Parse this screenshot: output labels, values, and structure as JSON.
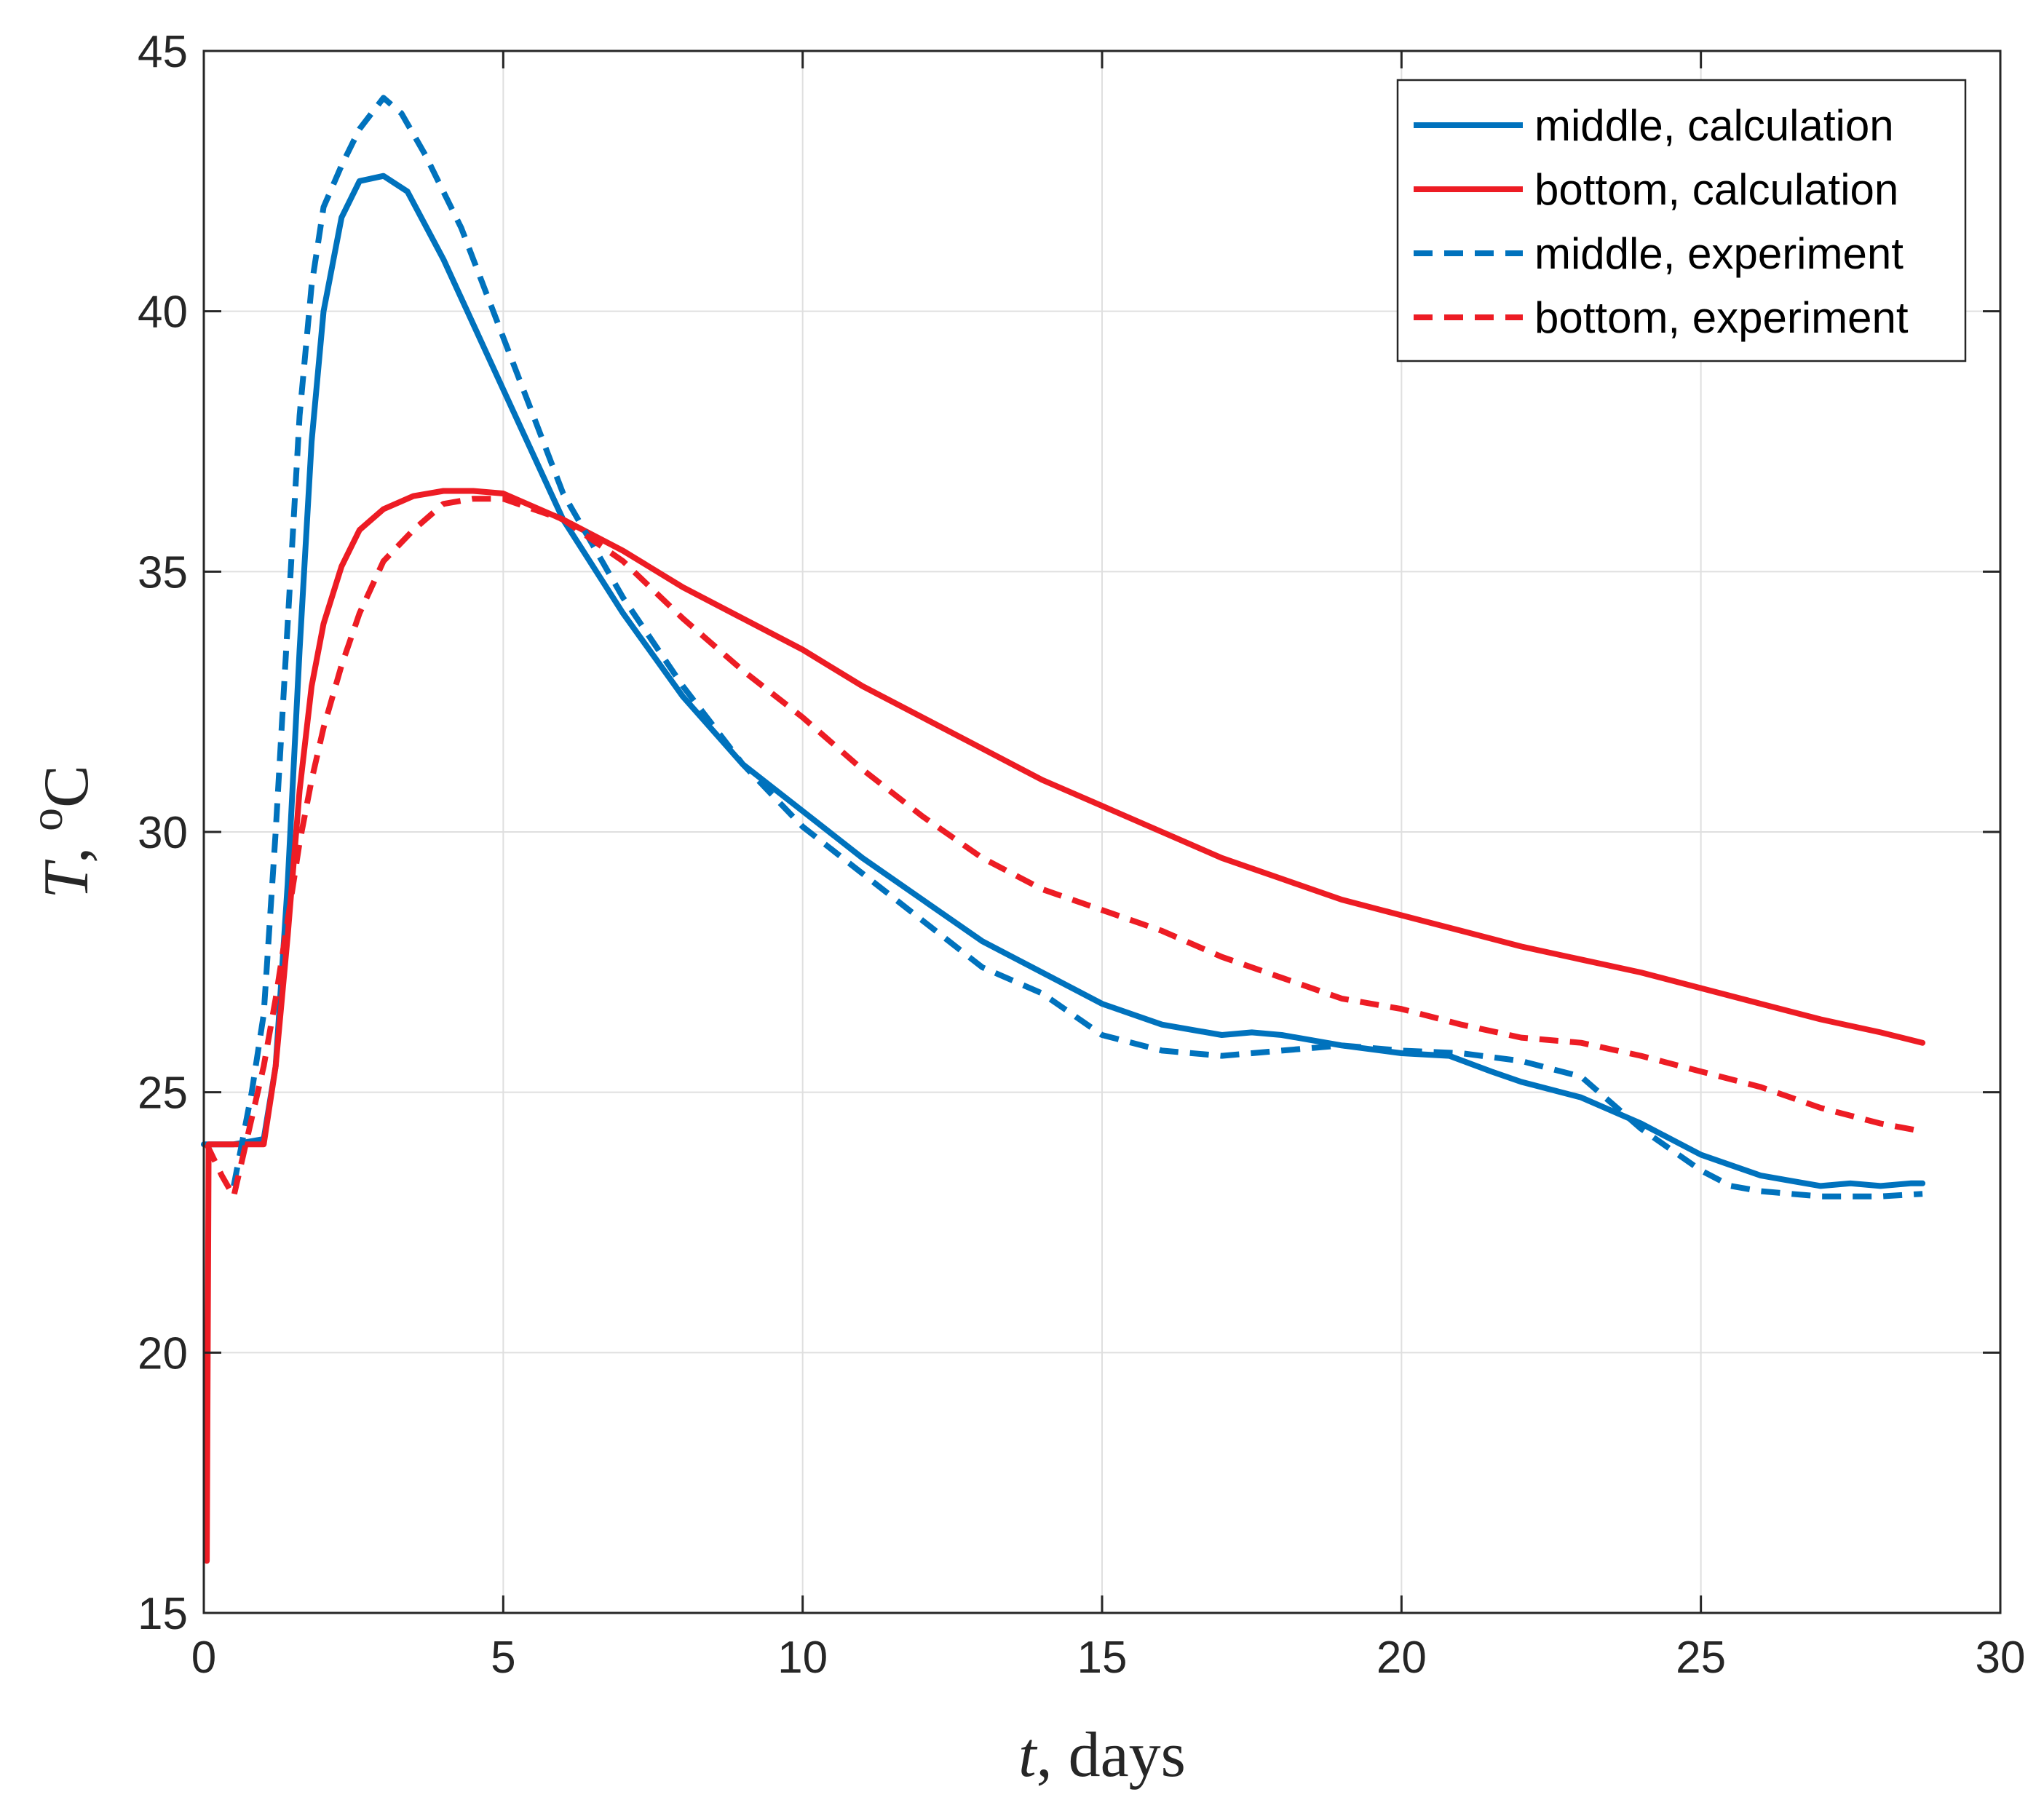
{
  "chart_data": {
    "type": "line",
    "title": "",
    "xlabel": {
      "var": "t",
      "rest": ", days"
    },
    "ylabel": {
      "var": "T",
      "rest": ", ",
      "sup": "o",
      "unit": "C"
    },
    "xlim": [
      0,
      30
    ],
    "ylim": [
      15,
      45
    ],
    "xticks": [
      0,
      5,
      10,
      15,
      20,
      25,
      30
    ],
    "yticks": [
      15,
      20,
      25,
      30,
      35,
      40,
      45
    ],
    "grid": true,
    "legend_position": "top-right",
    "colors": {
      "blue": "#0072BD",
      "red": "#ED1C24"
    },
    "series": [
      {
        "name": "middle, calculation",
        "style": "solid",
        "color": "#0072BD",
        "x": [
          0,
          0.5,
          1.0,
          1.2,
          1.4,
          1.6,
          1.8,
          2.0,
          2.3,
          2.6,
          3.0,
          3.4,
          4.0,
          5.0,
          6.0,
          7.0,
          8.0,
          9.0,
          10.0,
          11.0,
          12.0,
          13.0,
          14.0,
          14.5,
          15.0,
          16.0,
          17.0,
          17.5,
          18.0,
          19.0,
          20.0,
          20.8,
          21.5,
          22.0,
          23.0,
          24.0,
          24.5,
          25.0,
          25.5,
          26.0,
          26.5,
          27.0,
          27.5,
          28.0,
          28.5,
          28.7
        ],
        "y": [
          24.0,
          24.0,
          24.1,
          25.5,
          29.0,
          33.5,
          37.5,
          40.0,
          41.8,
          42.5,
          42.6,
          42.3,
          41.0,
          38.5,
          36.0,
          34.2,
          32.6,
          31.3,
          30.4,
          29.5,
          28.7,
          27.9,
          27.3,
          27.0,
          26.7,
          26.3,
          26.1,
          26.15,
          26.1,
          25.9,
          25.75,
          25.7,
          25.4,
          25.2,
          24.9,
          24.4,
          24.1,
          23.8,
          23.6,
          23.4,
          23.3,
          23.2,
          23.25,
          23.2,
          23.25,
          23.25
        ]
      },
      {
        "name": "bottom, calculation",
        "style": "solid",
        "color": "#ED1C24",
        "x": [
          0.05,
          0.08,
          0.1,
          0.5,
          1.0,
          1.2,
          1.4,
          1.6,
          1.8,
          2.0,
          2.3,
          2.6,
          3.0,
          3.5,
          4.0,
          4.5,
          5.0,
          6.0,
          7.0,
          8.0,
          9.0,
          10.0,
          11.0,
          12.0,
          13.0,
          14.0,
          15.0,
          16.0,
          17.0,
          18.0,
          19.0,
          20.0,
          21.0,
          22.0,
          23.0,
          24.0,
          25.0,
          26.0,
          27.0,
          28.0,
          28.7
        ],
        "y": [
          16.0,
          24.0,
          24.0,
          24.0,
          24.0,
          25.5,
          28.0,
          30.8,
          32.8,
          34.0,
          35.1,
          35.8,
          36.2,
          36.45,
          36.55,
          36.55,
          36.5,
          36.0,
          35.4,
          34.7,
          34.1,
          33.5,
          32.8,
          32.2,
          31.6,
          31.0,
          30.5,
          30.0,
          29.5,
          29.1,
          28.7,
          28.4,
          28.1,
          27.8,
          27.55,
          27.3,
          27.0,
          26.7,
          26.4,
          26.15,
          25.95
        ]
      },
      {
        "name": "middle, experiment",
        "style": "dashed",
        "color": "#0072BD",
        "x": [
          0.5,
          0.8,
          1.0,
          1.2,
          1.4,
          1.6,
          1.8,
          2.0,
          2.3,
          2.6,
          3.0,
          3.3,
          3.7,
          4.3,
          5.0,
          5.5,
          6.0,
          7.0,
          8.0,
          9.0,
          10.0,
          11.0,
          12.0,
          13.0,
          14.0,
          14.5,
          15.0,
          16.0,
          17.0,
          18.0,
          19.0,
          20.0,
          21.0,
          22.0,
          23.0,
          24.0,
          25.0,
          25.5,
          26.0,
          26.5,
          27.0,
          28.0,
          28.7
        ],
        "y": [
          23.2,
          25.0,
          26.5,
          30.0,
          34.0,
          38.0,
          40.5,
          42.0,
          42.8,
          43.5,
          44.1,
          43.8,
          43.0,
          41.6,
          39.5,
          38.0,
          36.5,
          34.5,
          32.8,
          31.3,
          30.1,
          29.2,
          28.3,
          27.4,
          26.9,
          26.5,
          26.1,
          25.8,
          25.7,
          25.8,
          25.9,
          25.8,
          25.75,
          25.6,
          25.3,
          24.3,
          23.5,
          23.2,
          23.1,
          23.05,
          23.0,
          23.0,
          23.05
        ]
      },
      {
        "name": "bottom, experiment",
        "style": "dashed",
        "color": "#ED1C24",
        "x": [
          0.05,
          0.3,
          0.5,
          0.8,
          1.0,
          1.2,
          1.4,
          1.6,
          1.8,
          2.0,
          2.3,
          2.6,
          3.0,
          3.5,
          4.0,
          4.5,
          5.0,
          6.0,
          7.0,
          8.0,
          9.0,
          10.0,
          11.0,
          12.0,
          13.0,
          14.0,
          15.0,
          16.0,
          17.0,
          18.0,
          19.0,
          20.0,
          21.0,
          22.0,
          23.0,
          24.0,
          25.0,
          26.0,
          27.0,
          28.0,
          28.7
        ],
        "y": [
          24.0,
          23.4,
          23.0,
          24.5,
          25.5,
          26.8,
          28.3,
          29.8,
          31.0,
          32.0,
          33.2,
          34.2,
          35.2,
          35.8,
          36.3,
          36.4,
          36.4,
          36.0,
          35.2,
          34.1,
          33.1,
          32.2,
          31.2,
          30.3,
          29.5,
          28.9,
          28.5,
          28.1,
          27.6,
          27.2,
          26.8,
          26.6,
          26.3,
          26.05,
          25.95,
          25.7,
          25.4,
          25.1,
          24.7,
          24.4,
          24.25
        ]
      }
    ]
  }
}
